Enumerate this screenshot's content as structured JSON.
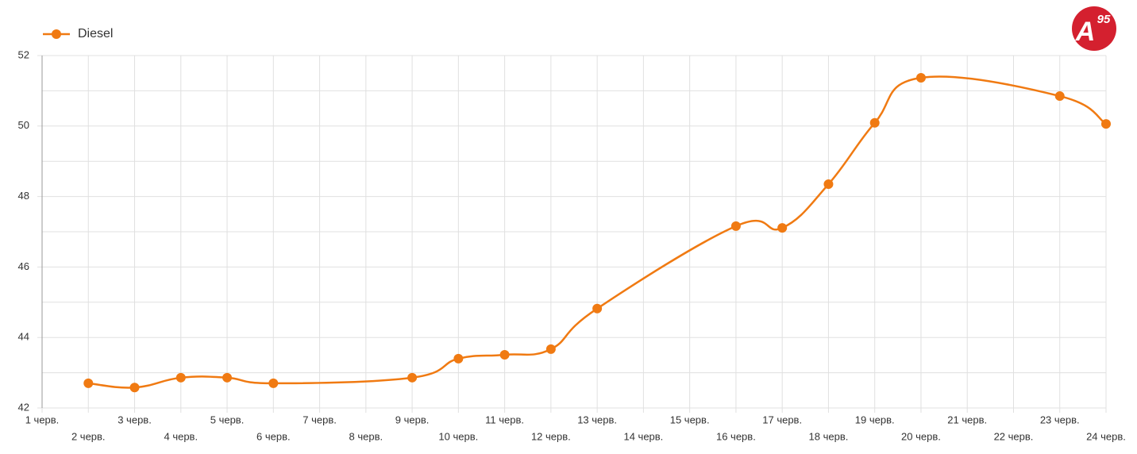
{
  "brand": {
    "letter": "A",
    "number": "95"
  },
  "chart_data": {
    "type": "line",
    "categories": [
      "1 черв.",
      "2 черв.",
      "3 черв.",
      "4 черв.",
      "5 черв.",
      "6 черв.",
      "7 черв.",
      "8 черв.",
      "9 черв.",
      "10 черв.",
      "11 черв.",
      "12 черв.",
      "13 черв.",
      "14 черв.",
      "15 черв.",
      "16 черв.",
      "17 черв.",
      "18 черв.",
      "19 черв.",
      "20 черв.",
      "21 черв.",
      "22 черв.",
      "23 черв.",
      "24 черв."
    ],
    "series": [
      {
        "name": "Diesel",
        "color": "#f07a12",
        "values": [
          null,
          42.7,
          42.58,
          42.86,
          42.86,
          42.7,
          null,
          null,
          42.86,
          43.4,
          43.51,
          43.67,
          44.82,
          null,
          null,
          47.16,
          47.11,
          48.35,
          50.09,
          51.37,
          null,
          null,
          50.85,
          50.06
        ]
      }
    ],
    "ylim": [
      42,
      52
    ],
    "yticks": [
      42,
      44,
      46,
      48,
      50,
      52
    ],
    "grid": true,
    "span_gaps": true,
    "smooth": true,
    "legend": "top-left"
  }
}
